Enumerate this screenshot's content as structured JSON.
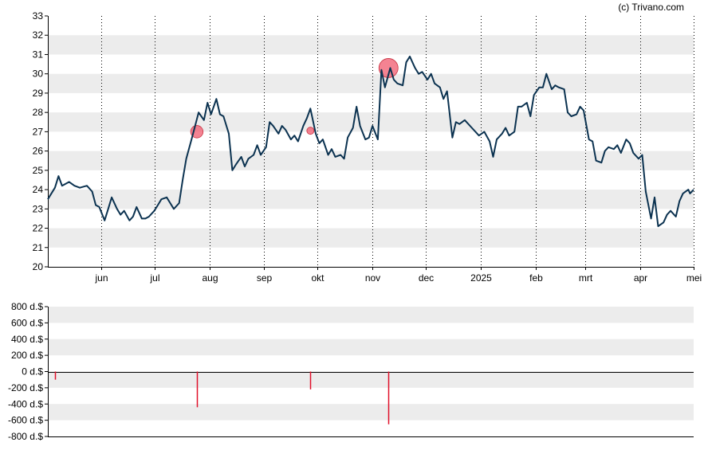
{
  "credit": "(c) Trivano.com",
  "colors": {
    "price_line": "#0b3250",
    "marker": "#f05a6e",
    "flow_bar": "#e0102a",
    "band": "#ececec",
    "axis": "#000000"
  },
  "chart_data": [
    {
      "type": "line",
      "title": "",
      "xlabel": "",
      "ylabel": "",
      "ylim": [
        20,
        33
      ],
      "y_ticks": [
        "20",
        "21",
        "22",
        "23",
        "24",
        "25",
        "26",
        "27",
        "28",
        "29",
        "30",
        "31",
        "32",
        "33"
      ],
      "x_ticks": [
        {
          "label": "jun",
          "date": "2024-06-01"
        },
        {
          "label": "jul",
          "date": "2024-07-01"
        },
        {
          "label": "aug",
          "date": "2024-08-01"
        },
        {
          "label": "sep",
          "date": "2024-09-01"
        },
        {
          "label": "okt",
          "date": "2024-10-01"
        },
        {
          "label": "nov",
          "date": "2024-11-01"
        },
        {
          "label": "dec",
          "date": "2024-12-01"
        },
        {
          "label": "2025",
          "date": "2025-01-01"
        },
        {
          "label": "feb",
          "date": "2025-02-01"
        },
        {
          "label": "mrt",
          "date": "2025-03-01"
        },
        {
          "label": "apr",
          "date": "2025-04-01"
        },
        {
          "label": "mei",
          "date": "2025-05-01"
        }
      ],
      "xlim": [
        "2024-05-02",
        "2025-05-01"
      ],
      "grid": {
        "horizontal_bands": true,
        "vertical_dotted": true
      },
      "series": [
        {
          "values": [
            [
              "2024-05-02",
              23.5
            ],
            [
              "2024-05-06",
              24.1
            ],
            [
              "2024-05-08",
              24.7
            ],
            [
              "2024-05-10",
              24.2
            ],
            [
              "2024-05-14",
              24.4
            ],
            [
              "2024-05-17",
              24.2
            ],
            [
              "2024-05-20",
              24.1
            ],
            [
              "2024-05-24",
              24.2
            ],
            [
              "2024-05-27",
              23.9
            ],
            [
              "2024-05-29",
              23.2
            ],
            [
              "2024-05-31",
              23.1
            ],
            [
              "2024-06-03",
              22.4
            ],
            [
              "2024-06-05",
              23.0
            ],
            [
              "2024-06-07",
              23.6
            ],
            [
              "2024-06-10",
              23.0
            ],
            [
              "2024-06-12",
              22.7
            ],
            [
              "2024-06-14",
              22.9
            ],
            [
              "2024-06-17",
              22.4
            ],
            [
              "2024-06-19",
              22.6
            ],
            [
              "2024-06-21",
              23.1
            ],
            [
              "2024-06-24",
              22.5
            ],
            [
              "2024-06-26",
              22.5
            ],
            [
              "2024-06-28",
              22.6
            ],
            [
              "2024-07-01",
              22.9
            ],
            [
              "2024-07-03",
              23.2
            ],
            [
              "2024-07-05",
              23.5
            ],
            [
              "2024-07-08",
              23.6
            ],
            [
              "2024-07-10",
              23.3
            ],
            [
              "2024-07-12",
              23.0
            ],
            [
              "2024-07-15",
              23.3
            ],
            [
              "2024-07-17",
              24.5
            ],
            [
              "2024-07-19",
              25.6
            ],
            [
              "2024-07-22",
              26.6
            ],
            [
              "2024-07-24",
              27.3
            ],
            [
              "2024-07-26",
              28.0
            ],
            [
              "2024-07-29",
              27.6
            ],
            [
              "2024-07-31",
              28.5
            ],
            [
              "2024-08-02",
              27.9
            ],
            [
              "2024-08-05",
              28.7
            ],
            [
              "2024-08-07",
              27.9
            ],
            [
              "2024-08-09",
              27.8
            ],
            [
              "2024-08-12",
              26.9
            ],
            [
              "2024-08-14",
              25.0
            ],
            [
              "2024-08-16",
              25.3
            ],
            [
              "2024-08-19",
              25.7
            ],
            [
              "2024-08-21",
              25.2
            ],
            [
              "2024-08-23",
              25.6
            ],
            [
              "2024-08-26",
              25.8
            ],
            [
              "2024-08-28",
              26.3
            ],
            [
              "2024-08-30",
              25.8
            ],
            [
              "2024-09-02",
              26.2
            ],
            [
              "2024-09-04",
              27.5
            ],
            [
              "2024-09-06",
              27.3
            ],
            [
              "2024-09-09",
              26.9
            ],
            [
              "2024-09-11",
              27.3
            ],
            [
              "2024-09-13",
              27.1
            ],
            [
              "2024-09-16",
              26.6
            ],
            [
              "2024-09-18",
              26.8
            ],
            [
              "2024-09-20",
              26.5
            ],
            [
              "2024-09-23",
              27.3
            ],
            [
              "2024-09-25",
              27.7
            ],
            [
              "2024-09-27",
              28.2
            ],
            [
              "2024-09-30",
              26.9
            ],
            [
              "2024-10-02",
              26.4
            ],
            [
              "2024-10-04",
              26.6
            ],
            [
              "2024-10-07",
              25.8
            ],
            [
              "2024-10-09",
              26.1
            ],
            [
              "2024-10-11",
              25.7
            ],
            [
              "2024-10-14",
              25.8
            ],
            [
              "2024-10-16",
              25.6
            ],
            [
              "2024-10-18",
              26.7
            ],
            [
              "2024-10-21",
              27.2
            ],
            [
              "2024-10-23",
              28.3
            ],
            [
              "2024-10-25",
              27.3
            ],
            [
              "2024-10-28",
              26.6
            ],
            [
              "2024-10-30",
              26.7
            ],
            [
              "2024-11-01",
              27.3
            ],
            [
              "2024-11-04",
              26.6
            ],
            [
              "2024-11-06",
              30.2
            ],
            [
              "2024-11-08",
              29.3
            ],
            [
              "2024-11-11",
              30.3
            ],
            [
              "2024-11-13",
              29.7
            ],
            [
              "2024-11-15",
              29.5
            ],
            [
              "2024-11-18",
              29.4
            ],
            [
              "2024-11-20",
              30.6
            ],
            [
              "2024-11-22",
              30.9
            ],
            [
              "2024-11-25",
              30.3
            ],
            [
              "2024-11-27",
              30.0
            ],
            [
              "2024-11-29",
              30.1
            ],
            [
              "2024-12-02",
              29.7
            ],
            [
              "2024-12-04",
              30.0
            ],
            [
              "2024-12-06",
              29.5
            ],
            [
              "2024-12-09",
              29.3
            ],
            [
              "2024-12-11",
              28.7
            ],
            [
              "2024-12-13",
              29.1
            ],
            [
              "2024-12-16",
              26.7
            ],
            [
              "2024-12-18",
              27.5
            ],
            [
              "2024-12-20",
              27.4
            ],
            [
              "2024-12-23",
              27.6
            ],
            [
              "2024-12-27",
              27.2
            ],
            [
              "2024-12-31",
              26.8
            ],
            [
              "2025-01-03",
              27.0
            ],
            [
              "2025-01-06",
              26.5
            ],
            [
              "2025-01-08",
              25.7
            ],
            [
              "2025-01-10",
              26.6
            ],
            [
              "2025-01-13",
              26.9
            ],
            [
              "2025-01-15",
              27.2
            ],
            [
              "2025-01-17",
              26.8
            ],
            [
              "2025-01-20",
              27.0
            ],
            [
              "2025-01-22",
              28.3
            ],
            [
              "2025-01-24",
              28.3
            ],
            [
              "2025-01-27",
              28.5
            ],
            [
              "2025-01-29",
              27.8
            ],
            [
              "2025-01-31",
              28.9
            ],
            [
              "2025-02-03",
              29.3
            ],
            [
              "2025-02-05",
              29.3
            ],
            [
              "2025-02-07",
              30.0
            ],
            [
              "2025-02-10",
              29.2
            ],
            [
              "2025-02-12",
              29.4
            ],
            [
              "2025-02-14",
              29.3
            ],
            [
              "2025-02-17",
              29.2
            ],
            [
              "2025-02-19",
              28.0
            ],
            [
              "2025-02-21",
              27.8
            ],
            [
              "2025-02-24",
              27.9
            ],
            [
              "2025-02-26",
              28.3
            ],
            [
              "2025-02-28",
              28.1
            ],
            [
              "2025-03-03",
              26.6
            ],
            [
              "2025-03-05",
              26.5
            ],
            [
              "2025-03-07",
              25.5
            ],
            [
              "2025-03-10",
              25.4
            ],
            [
              "2025-03-12",
              26.0
            ],
            [
              "2025-03-14",
              26.2
            ],
            [
              "2025-03-17",
              26.1
            ],
            [
              "2025-03-19",
              26.3
            ],
            [
              "2025-03-21",
              25.9
            ],
            [
              "2025-03-24",
              26.6
            ],
            [
              "2025-03-26",
              26.4
            ],
            [
              "2025-03-28",
              25.9
            ],
            [
              "2025-03-31",
              25.6
            ],
            [
              "2025-04-02",
              25.8
            ],
            [
              "2025-04-04",
              23.9
            ],
            [
              "2025-04-07",
              22.5
            ],
            [
              "2025-04-09",
              23.6
            ],
            [
              "2025-04-11",
              22.1
            ],
            [
              "2025-04-14",
              22.3
            ],
            [
              "2025-04-16",
              22.7
            ],
            [
              "2025-04-18",
              22.9
            ],
            [
              "2025-04-21",
              22.6
            ],
            [
              "2025-04-23",
              23.4
            ],
            [
              "2025-04-25",
              23.8
            ],
            [
              "2025-04-28",
              24.0
            ],
            [
              "2025-04-29",
              23.8
            ],
            [
              "2025-05-01",
              24.0
            ]
          ]
        }
      ],
      "markers": [
        {
          "date": "2024-07-25",
          "y": 27.0,
          "size": 1.3
        },
        {
          "date": "2024-09-27",
          "y": 27.05,
          "size": 0.75
        },
        {
          "date": "2024-11-10",
          "y": 30.3,
          "size": 2.0
        }
      ]
    },
    {
      "type": "bar",
      "title": "",
      "xlabel": "",
      "ylabel": "",
      "ylim": [
        -800,
        800
      ],
      "y_ticks": [
        "800 d.$",
        "600 d.$",
        "400 d.$",
        "200 d.$",
        "0 d.$",
        "-200 d.$",
        "-400 d.$",
        "-600 d.$",
        "-800 d.$"
      ],
      "xlim": [
        "2024-05-02",
        "2025-05-01"
      ],
      "grid": {
        "horizontal_bands": true
      },
      "values": [
        {
          "date": "2024-05-06",
          "value": -100
        },
        {
          "date": "2024-07-25",
          "value": -440
        },
        {
          "date": "2024-09-27",
          "value": -220
        },
        {
          "date": "2024-11-10",
          "value": -650
        }
      ]
    }
  ]
}
